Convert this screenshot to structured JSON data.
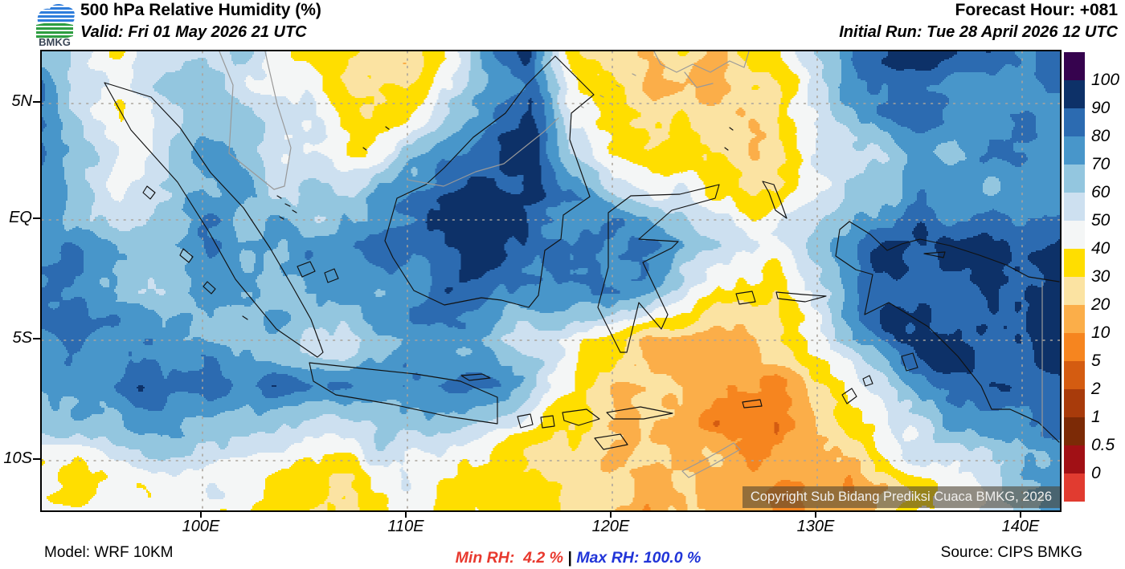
{
  "header": {
    "logo_text": "BMKG",
    "title": "500 hPa Relative Humidity (%)",
    "valid": "Valid: Fri 01 May 2026 21 UTC",
    "forecast_hour": "Forecast Hour: +081",
    "initial_run": "Initial Run: Tue 28 April 2026 12 UTC"
  },
  "map": {
    "copyright": "Copyright Sub Bidang Prediksi Cuaca BMKG, 2026",
    "lat_ticks": [
      "5N",
      "EQ",
      "5S",
      "10S"
    ],
    "lon_ticks": [
      "100E",
      "110E",
      "120E",
      "130E",
      "140E"
    ]
  },
  "colorbar": {
    "labels": [
      "100",
      "90",
      "80",
      "70",
      "60",
      "50",
      "40",
      "30",
      "20",
      "10",
      "5",
      "2",
      "1",
      "0.5",
      "0"
    ],
    "colors_top_to_bottom": [
      "#36034e",
      "#0d3168",
      "#2c6bb1",
      "#4896ca",
      "#93c6df",
      "#cde0f0",
      "#f4f6f6",
      "#ffde00",
      "#fbe3a2",
      "#fbae49",
      "#f6851f",
      "#d45c11",
      "#a83b0b",
      "#7c2a06",
      "#a11015",
      "#e13b30"
    ]
  },
  "footer": {
    "model": "Model: WRF 10KM",
    "min_rh": "Min RH:  4.2 %",
    "separator": "|",
    "max_rh": "Max RH: 100.0 %",
    "source": "Source: CIPS BMKG"
  },
  "chart_data": {
    "type": "heatmap",
    "title": "500 hPa Relative Humidity (%)",
    "units": "%",
    "valid_time": "Fri 01 May 2026 21 UTC",
    "initial_run": "Tue 28 April 2026 12 UTC",
    "forecast_hour": "+081",
    "model": "WRF 10KM",
    "source": "CIPS BMKG",
    "min_rh_percent": 4.2,
    "max_rh_percent": 100.0,
    "levels": [
      0,
      0.5,
      1,
      2,
      5,
      10,
      20,
      30,
      40,
      50,
      60,
      70,
      80,
      90,
      100
    ],
    "palette_low_to_high": [
      "#e13b30",
      "#a11015",
      "#7c2a06",
      "#a83b0b",
      "#d45c11",
      "#f6851f",
      "#fbae49",
      "#fbe3a2",
      "#ffde00",
      "#f4f6f6",
      "#cde0f0",
      "#93c6df",
      "#4896ca",
      "#2c6bb1",
      "#0d3168",
      "#36034e"
    ],
    "lon_ticks_deg": [
      100,
      110,
      120,
      130,
      140
    ],
    "lat_ticks_deg": [
      5,
      0,
      -5,
      -10
    ],
    "lon_range": [
      92.2,
      141.8
    ],
    "lat_range": [
      -12.3,
      7.3
    ],
    "grid_lons": [
      92,
      94,
      96,
      98,
      100,
      102,
      104,
      106,
      108,
      110,
      112,
      114,
      116,
      118,
      120,
      122,
      124,
      126,
      128,
      130,
      132,
      134,
      136,
      138,
      140,
      142
    ],
    "grid_lats": [
      7,
      5,
      3,
      1,
      -1,
      -3,
      -5,
      -7,
      -9,
      -11,
      -13
    ],
    "rh_grid": [
      [
        75,
        55,
        45,
        60,
        65,
        55,
        45,
        35,
        25,
        20,
        35,
        70,
        88,
        40,
        28,
        22,
        20,
        25,
        35,
        60,
        88,
        95,
        90,
        82,
        78,
        80
      ],
      [
        80,
        50,
        35,
        55,
        68,
        62,
        50,
        42,
        32,
        40,
        60,
        80,
        90,
        45,
        35,
        25,
        22,
        25,
        30,
        60,
        80,
        88,
        85,
        75,
        72,
        75
      ],
      [
        85,
        65,
        45,
        60,
        72,
        68,
        48,
        50,
        45,
        60,
        72,
        85,
        92,
        55,
        38,
        35,
        30,
        28,
        20,
        45,
        62,
        68,
        68,
        72,
        75,
        78
      ],
      [
        80,
        70,
        55,
        65,
        75,
        72,
        62,
        62,
        72,
        85,
        92,
        95,
        90,
        78,
        70,
        55,
        45,
        40,
        35,
        58,
        68,
        72,
        75,
        75,
        70,
        75
      ],
      [
        85,
        78,
        68,
        72,
        75,
        70,
        72,
        75,
        80,
        88,
        95,
        92,
        85,
        80,
        85,
        88,
        70,
        60,
        55,
        70,
        85,
        92,
        95,
        90,
        85,
        88
      ],
      [
        80,
        75,
        70,
        68,
        70,
        65,
        68,
        70,
        72,
        78,
        82,
        80,
        78,
        82,
        88,
        75,
        45,
        35,
        30,
        55,
        80,
        90,
        92,
        88,
        86,
        90
      ],
      [
        75,
        78,
        80,
        75,
        72,
        68,
        62,
        60,
        65,
        70,
        72,
        68,
        55,
        45,
        30,
        18,
        12,
        15,
        25,
        45,
        70,
        88,
        92,
        90,
        88,
        92
      ],
      [
        70,
        75,
        80,
        85,
        88,
        85,
        80,
        75,
        80,
        85,
        88,
        85,
        70,
        40,
        22,
        15,
        12,
        10,
        8,
        20,
        45,
        70,
        85,
        88,
        85,
        88
      ],
      [
        55,
        60,
        68,
        72,
        70,
        65,
        58,
        52,
        58,
        62,
        58,
        48,
        38,
        28,
        20,
        15,
        14,
        12,
        10,
        15,
        30,
        50,
        60,
        72,
        75,
        80
      ],
      [
        42,
        38,
        42,
        48,
        42,
        40,
        36,
        32,
        40,
        46,
        42,
        36,
        30,
        24,
        20,
        18,
        17,
        15,
        13,
        11,
        18,
        32,
        45,
        55,
        65,
        72
      ],
      [
        45,
        40,
        45,
        50,
        45,
        42,
        35,
        30,
        38,
        45,
        40,
        32,
        28,
        22,
        18,
        16,
        15,
        13,
        11,
        9,
        15,
        30,
        40,
        50,
        62,
        75
      ]
    ]
  }
}
